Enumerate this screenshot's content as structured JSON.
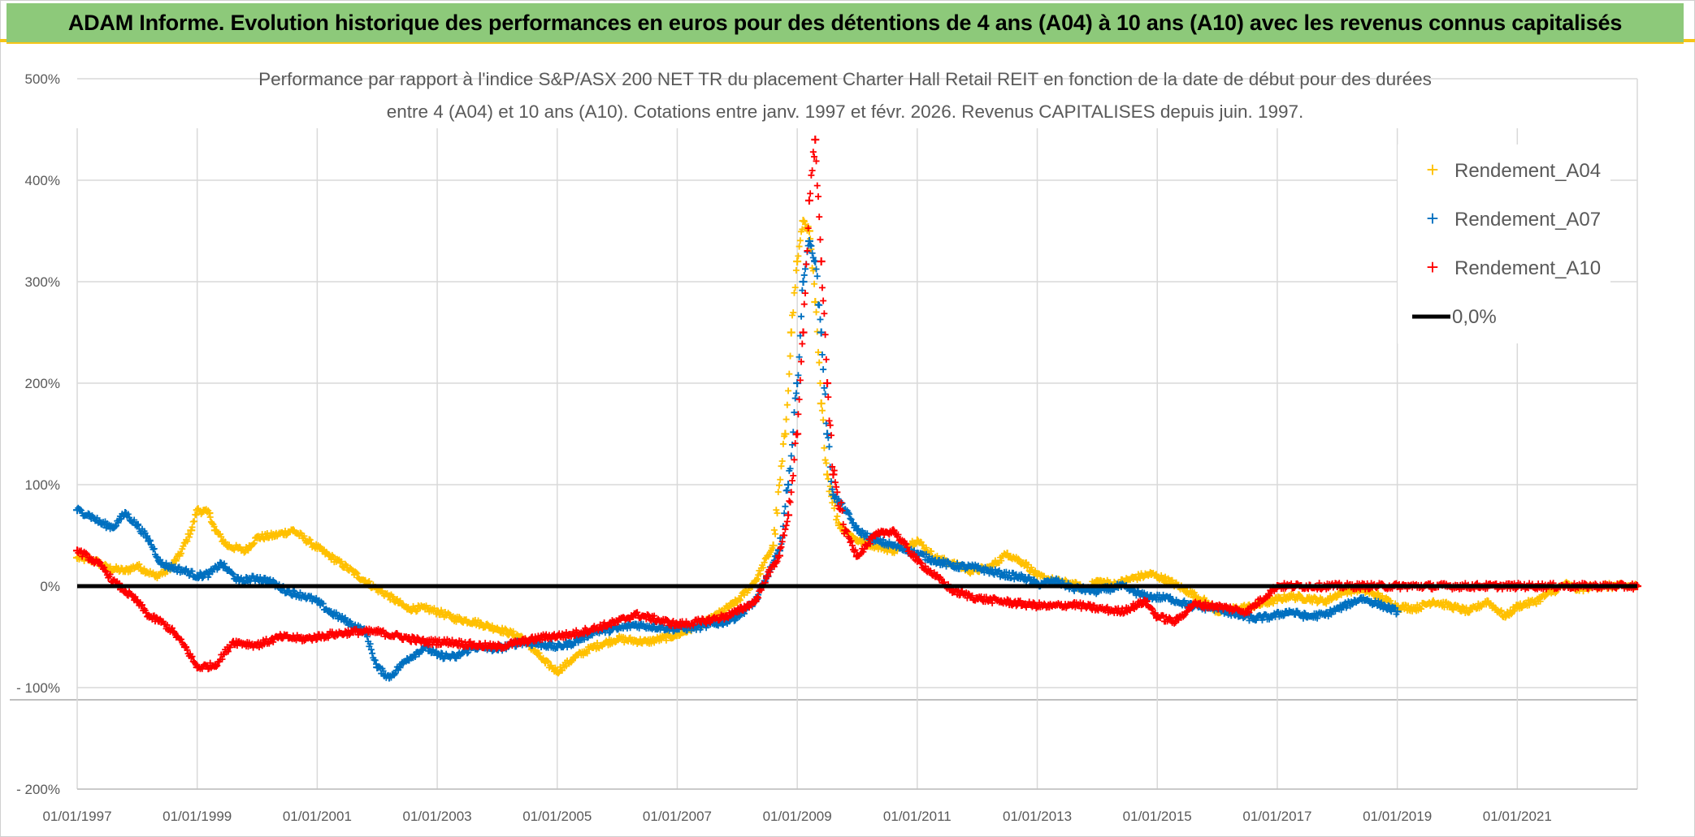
{
  "banner": {
    "title": "ADAM Informe. Evolution historique des performances en euros pour des détentions de 4 ans (A04) à 10 ans (A10) avec les revenus connus capitalisés"
  },
  "colors": {
    "banner_bg": "#8dc97a",
    "banner_accent": "#f5c518",
    "a04": "#ffc000",
    "a07": "#0070c0",
    "a10": "#ff0000",
    "zero_line": "#000000",
    "grid": "#d9d9d9",
    "text": "#595959"
  },
  "chart_data": {
    "type": "scatter",
    "title_lines": [
      "Performance par rapport à l'indice S&P/ASX 200 NET TR  du placement Charter Hall Retail REIT en fonction de la date de début pour des durées",
      "entre 4 (A04) et 10 ans (A10). Cotations entre janv. 1997 et févr. 2026. Revenus CAPITALISES depuis juin. 1997."
    ],
    "x_range": [
      1997.0,
      2023.0
    ],
    "ylim": [
      -200,
      500
    ],
    "y_ticks": [
      500,
      400,
      300,
      200,
      100,
      0,
      -100,
      -200
    ],
    "y_tick_labels": [
      "500%",
      "400%",
      "300%",
      "200%",
      "100%",
      "0%",
      "- 100%",
      "- 200%"
    ],
    "x_ticks": [
      1997,
      1999,
      2001,
      2003,
      2005,
      2007,
      2009,
      2011,
      2013,
      2015,
      2017,
      2019,
      2021
    ],
    "x_tick_labels": [
      "01/01/1997",
      "01/01/1999",
      "01/01/2001",
      "01/01/2003",
      "01/01/2005",
      "01/01/2007",
      "01/01/2009",
      "01/01/2011",
      "01/01/2013",
      "01/01/2015",
      "01/01/2017",
      "01/01/2019",
      "01/01/2021"
    ],
    "extra_hline": -112,
    "legend": [
      "Rendement_A04",
      "Rendement_A07",
      "Rendement_A10",
      "0,0%"
    ],
    "zero_line": {
      "label": "0,0%",
      "value": 0
    },
    "series": [
      {
        "name": "Rendement_A04",
        "color": "#ffc000",
        "x": [
          1997.0,
          1997.3,
          1997.5,
          1997.8,
          1998.0,
          1998.3,
          1998.5,
          1998.7,
          1998.9,
          1999.0,
          1999.2,
          1999.3,
          1999.5,
          1999.8,
          2000.0,
          2000.3,
          2000.6,
          2000.9,
          2001.2,
          2001.5,
          2001.8,
          2002.0,
          2002.2,
          2002.5,
          2002.8,
          2003.0,
          2003.3,
          2003.6,
          2004.0,
          2004.4,
          2004.8,
          2005.0,
          2005.3,
          2005.6,
          2006.0,
          2006.5,
          2007.0,
          2007.5,
          2008.0,
          2008.3,
          2008.6,
          2008.8,
          2008.9,
          2009.0,
          2009.1,
          2009.2,
          2009.3,
          2009.4,
          2009.5,
          2009.7,
          2010.0,
          2010.3,
          2010.6,
          2011.0,
          2011.3,
          2011.6,
          2011.9,
          2012.2,
          2012.5,
          2012.8,
          2013.0,
          2013.3,
          2013.6,
          2013.8,
          2014.0,
          2014.3,
          2014.6,
          2014.9,
          2015.2,
          2015.5,
          2015.8,
          2016.0,
          2016.3,
          2016.6,
          2016.9,
          2017.2,
          2017.5,
          2017.8,
          2018.1,
          2018.4,
          2018.7,
          2019.0,
          2019.3,
          2019.6,
          2019.9,
          2020.2,
          2020.5,
          2020.8,
          2021.0,
          2021.3,
          2021.6,
          2021.8,
          2022.0,
          2022.3,
          2022.6,
          2023.0
        ],
        "y": [
          28,
          25,
          18,
          15,
          20,
          10,
          15,
          30,
          55,
          75,
          72,
          55,
          40,
          35,
          48,
          50,
          55,
          42,
          30,
          18,
          5,
          -3,
          -10,
          -22,
          -22,
          -25,
          -32,
          -35,
          -42,
          -50,
          -75,
          -84,
          -70,
          -60,
          -52,
          -55,
          -48,
          -35,
          -15,
          5,
          40,
          150,
          250,
          320,
          360,
          350,
          280,
          180,
          110,
          60,
          45,
          40,
          35,
          45,
          28,
          22,
          15,
          18,
          32,
          22,
          10,
          5,
          2,
          -3,
          5,
          2,
          8,
          12,
          5,
          -5,
          -15,
          -25,
          -22,
          -20,
          -15,
          -10,
          -12,
          -15,
          -5,
          -3,
          -10,
          -20,
          -22,
          -15,
          -20,
          -25,
          -15,
          -30,
          -20,
          -15,
          -5,
          2,
          -3,
          0,
          0,
          0
        ]
      },
      {
        "name": "Rendement_A07",
        "color": "#0070c0",
        "x": [
          1997.0,
          1997.2,
          1997.4,
          1997.6,
          1997.8,
          1998.0,
          1998.2,
          1998.4,
          1998.6,
          1998.8,
          1999.0,
          1999.2,
          1999.4,
          1999.7,
          2000.0,
          2000.2,
          2000.5,
          2000.8,
          2001.0,
          2001.2,
          2001.5,
          2001.8,
          2002.0,
          2002.2,
          2002.5,
          2002.8,
          2003.0,
          2003.3,
          2003.6,
          2004.0,
          2004.4,
          2004.8,
          2005.0,
          2005.3,
          2005.6,
          2006.0,
          2006.3,
          2006.6,
          2007.0,
          2007.4,
          2007.8,
          2008.0,
          2008.3,
          2008.5,
          2008.7,
          2008.85,
          2009.0,
          2009.1,
          2009.2,
          2009.3,
          2009.4,
          2009.5,
          2009.6,
          2009.8,
          2010.0,
          2010.3,
          2010.6,
          2011.0,
          2011.3,
          2011.6,
          2012.0,
          2012.4,
          2012.8,
          2013.0,
          2013.3,
          2013.6,
          2014.0,
          2014.4,
          2014.8,
          2015.2,
          2015.6,
          2016.0,
          2016.3,
          2016.6,
          2016.9,
          2017.2,
          2017.5,
          2017.8,
          2018.1,
          2018.4,
          2018.7,
          2019.0
        ],
        "y": [
          75,
          70,
          62,
          58,
          72,
          60,
          45,
          22,
          18,
          15,
          10,
          12,
          22,
          5,
          8,
          5,
          -5,
          -10,
          -15,
          -25,
          -35,
          -45,
          -80,
          -90,
          -72,
          -60,
          -68,
          -70,
          -60,
          -62,
          -55,
          -58,
          -60,
          -55,
          -45,
          -42,
          -38,
          -40,
          -42,
          -40,
          -35,
          -30,
          -15,
          10,
          35,
          100,
          200,
          300,
          340,
          320,
          250,
          150,
          90,
          75,
          55,
          45,
          40,
          32,
          25,
          20,
          18,
          12,
          8,
          2,
          5,
          -2,
          -5,
          0,
          -10,
          -12,
          -20,
          -22,
          -28,
          -32,
          -30,
          -25,
          -30,
          -28,
          -20,
          -12,
          -18,
          -25
        ]
      },
      {
        "name": "Rendement_A10",
        "color": "#ff0000",
        "x": [
          1997.0,
          1997.2,
          1997.4,
          1997.6,
          1997.8,
          1998.0,
          1998.2,
          1998.4,
          1998.6,
          1998.8,
          1999.0,
          1999.3,
          1999.6,
          2000.0,
          2000.4,
          2000.8,
          2001.2,
          2001.6,
          2002.0,
          2002.4,
          2002.8,
          2003.2,
          2003.6,
          2004.0,
          2004.4,
          2004.8,
          2005.2,
          2005.6,
          2006.0,
          2006.3,
          2006.6,
          2007.0,
          2007.4,
          2007.8,
          2008.0,
          2008.3,
          2008.5,
          2008.7,
          2008.85,
          2009.0,
          2009.1,
          2009.2,
          2009.3,
          2009.4,
          2009.5,
          2009.6,
          2009.8,
          2010.0,
          2010.3,
          2010.6,
          2011.0,
          2011.3,
          2011.6,
          2012.0,
          2012.4,
          2012.8,
          2013.2,
          2013.6,
          2014.0,
          2014.4,
          2014.8,
          2015.0,
          2015.3,
          2015.6,
          2016.0,
          2016.5,
          2017.0,
          2018.0,
          2019.0,
          2020.0,
          2021.0,
          2022.0,
          2023.0
        ],
        "y": [
          35,
          28,
          20,
          5,
          -5,
          -15,
          -30,
          -35,
          -45,
          -60,
          -80,
          -78,
          -55,
          -58,
          -50,
          -52,
          -48,
          -45,
          -45,
          -50,
          -55,
          -55,
          -58,
          -60,
          -55,
          -50,
          -48,
          -42,
          -35,
          -28,
          -32,
          -38,
          -35,
          -30,
          -25,
          -15,
          10,
          30,
          70,
          150,
          250,
          380,
          440,
          320,
          200,
          110,
          55,
          30,
          50,
          55,
          25,
          10,
          -5,
          -12,
          -15,
          -18,
          -20,
          -18,
          -22,
          -25,
          -15,
          -30,
          -35,
          -18,
          -20,
          -25,
          0,
          0,
          0,
          0,
          0,
          0,
          0
        ]
      }
    ]
  }
}
